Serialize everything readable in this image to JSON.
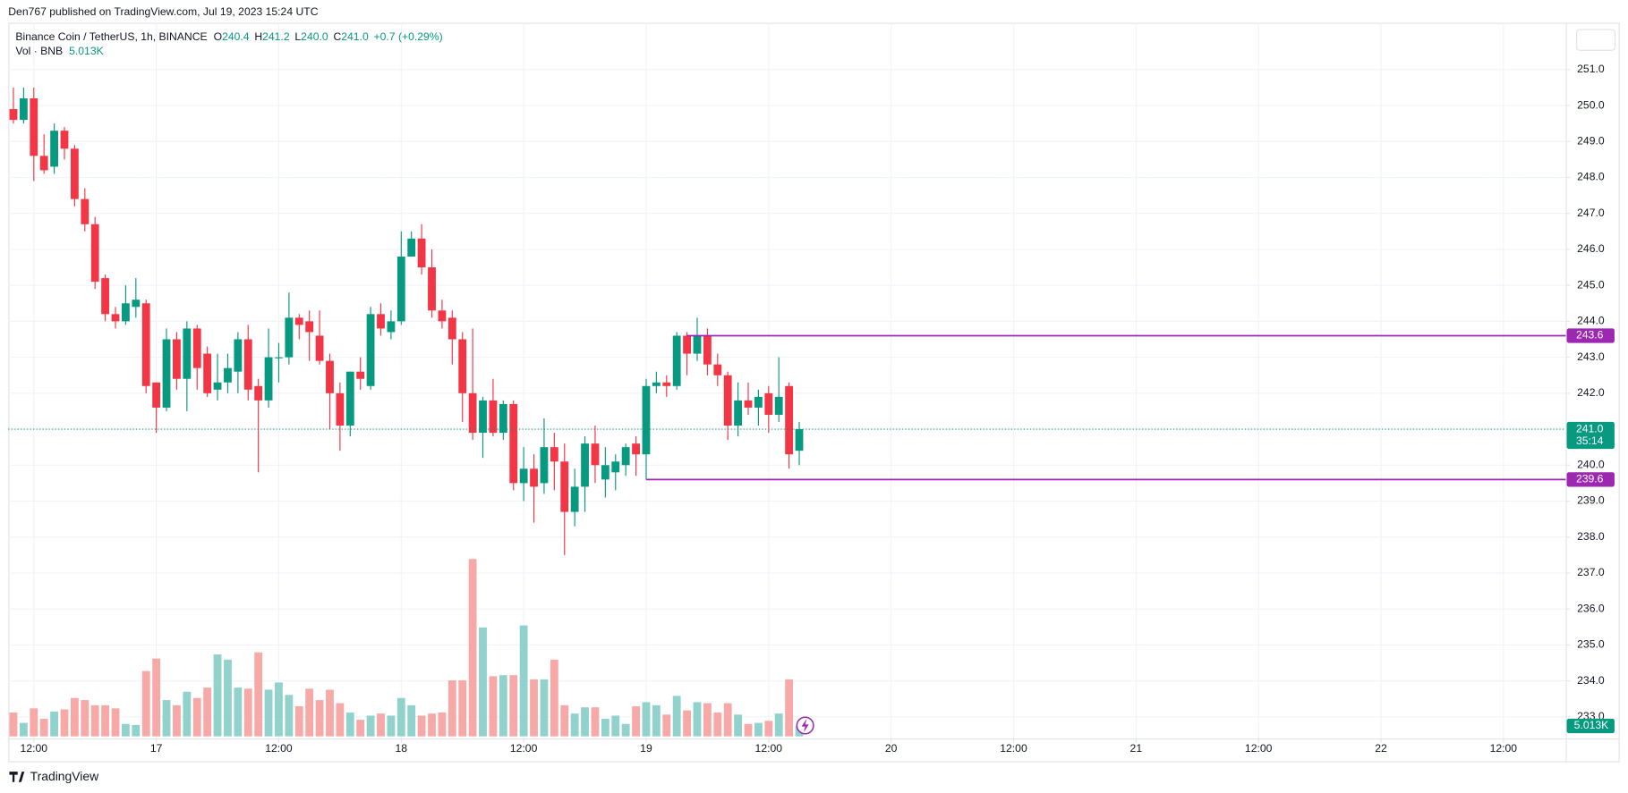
{
  "header": "Den767 published on TradingView.com, Jul 19, 2023 15:24 UTC",
  "legend": {
    "symbol": "Binance Coin / TetherUS, 1h, BINANCE",
    "items": [
      {
        "label": "O",
        "value": "240.4"
      },
      {
        "label": "H",
        "value": "241.2"
      },
      {
        "label": "L",
        "value": "240.0"
      },
      {
        "label": "C",
        "value": "241.0"
      }
    ],
    "change": "+0.7 (+0.29%)",
    "volume_label": "Vol · BNB",
    "volume_value": "5.013K"
  },
  "footer": "TradingView",
  "chart_data": {
    "type": "candlestick",
    "x": [
      10,
      11,
      12,
      13,
      14,
      15,
      16,
      17,
      18,
      19,
      20,
      21,
      22,
      23,
      24,
      25,
      26,
      27,
      28,
      29,
      30,
      31,
      32,
      33,
      34,
      35,
      36,
      37,
      38,
      39,
      40,
      41,
      42,
      43,
      44,
      45,
      46,
      47,
      48,
      49,
      50,
      51,
      52,
      53,
      54,
      55,
      56,
      57,
      58,
      59,
      60,
      61,
      62,
      63,
      64,
      65,
      66,
      67,
      68,
      69,
      70,
      71,
      72,
      73,
      74,
      75,
      76,
      77,
      78,
      79,
      80,
      81,
      82,
      83,
      84,
      85,
      86,
      87
    ],
    "open": [
      249.9,
      249.6,
      250.2,
      248.6,
      248.3,
      249.3,
      248.8,
      247.4,
      246.7,
      245.2,
      244.2,
      244.0,
      244.4,
      244.5,
      242.3,
      241.6,
      243.5,
      242.4,
      243.8,
      243.1,
      242.1,
      242.3,
      242.6,
      243.5,
      242.2,
      241.8,
      243.0,
      243.0,
      244.1,
      244.0,
      243.6,
      242.9,
      242.0,
      241.1,
      242.6,
      242.2,
      244.2,
      243.7,
      244.0,
      245.8,
      246.3,
      245.5,
      244.3,
      244.1,
      243.5,
      242.0,
      240.9,
      241.8,
      240.9,
      241.7,
      239.5,
      239.9,
      239.5,
      240.5,
      240.1,
      238.7,
      239.4,
      240.6,
      239.6,
      239.8,
      240.0,
      240.6,
      240.3,
      242.2,
      242.3,
      242.2,
      243.6,
      243.1,
      243.6,
      242.8,
      242.5,
      241.1,
      241.8,
      241.6,
      242.0,
      241.4,
      242.2,
      240.4
    ],
    "high": [
      250.5,
      250.5,
      250.5,
      249.2,
      249.5,
      249.4,
      248.9,
      247.7,
      246.9,
      245.3,
      244.4,
      245.0,
      245.2,
      244.6,
      242.3,
      243.8,
      243.7,
      244.0,
      243.9,
      243.3,
      243.1,
      243.1,
      243.7,
      243.9,
      242.4,
      243.8,
      243.4,
      244.8,
      244.2,
      244.3,
      244.3,
      243.1,
      242.3,
      242.6,
      243.0,
      244.4,
      244.5,
      244.3,
      246.5,
      246.5,
      246.7,
      246.0,
      244.6,
      244.3,
      243.7,
      243.8,
      241.9,
      242.4,
      241.8,
      241.8,
      240.5,
      240.3,
      241.3,
      240.9,
      240.6,
      239.9,
      240.8,
      241.1,
      240.5,
      240.3,
      240.6,
      240.8,
      242.4,
      242.6,
      242.5,
      243.7,
      243.7,
      244.1,
      243.8,
      243.1,
      242.6,
      242.3,
      242.3,
      242.1,
      242.2,
      243.0,
      242.3,
      241.2
    ],
    "low": [
      249.5,
      249.5,
      247.9,
      248.1,
      248.1,
      248.5,
      247.2,
      246.5,
      244.9,
      244.0,
      243.8,
      243.9,
      244.1,
      242.0,
      240.9,
      241.5,
      242.1,
      241.5,
      242.1,
      241.9,
      241.8,
      242.0,
      242.0,
      241.8,
      239.8,
      241.6,
      242.3,
      242.8,
      243.5,
      242.9,
      242.8,
      241.0,
      240.4,
      240.8,
      242.1,
      242.1,
      243.6,
      243.5,
      243.9,
      245.8,
      245.3,
      244.1,
      243.8,
      242.8,
      241.2,
      240.7,
      240.2,
      240.8,
      240.7,
      239.3,
      239.0,
      238.4,
      239.2,
      239.3,
      237.5,
      238.3,
      238.7,
      239.5,
      239.1,
      239.3,
      239.7,
      239.7,
      239.6,
      242.0,
      241.9,
      242.1,
      242.5,
      242.9,
      242.5,
      242.2,
      240.7,
      240.8,
      241.4,
      241.1,
      240.9,
      241.2,
      239.9,
      240.0
    ],
    "close": [
      249.6,
      250.2,
      248.6,
      248.2,
      249.3,
      248.8,
      247.4,
      246.7,
      245.1,
      244.2,
      244.0,
      244.5,
      244.6,
      242.2,
      241.6,
      243.5,
      242.4,
      243.8,
      242.7,
      242.0,
      242.3,
      242.7,
      243.5,
      242.1,
      241.8,
      243.0,
      243.0,
      244.1,
      243.9,
      243.7,
      242.9,
      242.0,
      241.1,
      242.6,
      242.4,
      244.2,
      243.8,
      244.0,
      245.8,
      246.3,
      245.5,
      244.3,
      244.0,
      243.5,
      242.0,
      240.9,
      241.8,
      240.9,
      241.7,
      239.5,
      239.9,
      239.4,
      240.5,
      240.1,
      238.7,
      239.4,
      240.6,
      240.0,
      240.0,
      240.1,
      240.5,
      240.3,
      242.2,
      242.3,
      242.2,
      243.6,
      243.1,
      243.6,
      242.8,
      242.5,
      241.1,
      241.8,
      241.6,
      241.9,
      241.4,
      241.9,
      240.3,
      241.0
    ],
    "volume": [
      11.5,
      6.5,
      13.5,
      8.5,
      12,
      13,
      18.5,
      17.5,
      15,
      15,
      13.5,
      6,
      5.5,
      31.5,
      37.5,
      17.5,
      15,
      21.5,
      18.5,
      23.5,
      39.5,
      37,
      23.5,
      23,
      40.5,
      22.5,
      26,
      20,
      14.5,
      23,
      17.5,
      22.5,
      16,
      11.5,
      8,
      10,
      11,
      10,
      18.5,
      15,
      10,
      11,
      11.5,
      27,
      27,
      85.5,
      52.5,
      29,
      29.5,
      29.5,
      53.5,
      27.5,
      27.5,
      37,
      15,
      11,
      14,
      14,
      8.5,
      10,
      6,
      14.5,
      16.5,
      15,
      10.5,
      19.5,
      12.5,
      16.5,
      16,
      11.5,
      16,
      10.5,
      6,
      6.5,
      7.5,
      11,
      27.5,
      5.013
    ],
    "volume_label": "5.013K",
    "volume_ylim": [
      0,
      100
    ],
    "up_color": "#089981",
    "down_color": "#f23645",
    "volume_up_color": "#92d2cc",
    "volume_down_color": "#f7a9a7",
    "xlim": [
      9.5,
      162.1
    ],
    "xticks": [
      {
        "value": 12,
        "label": "12:00"
      },
      {
        "value": 24,
        "label": "17"
      },
      {
        "value": 36,
        "label": "12:00"
      },
      {
        "value": 48,
        "label": "18"
      },
      {
        "value": 60,
        "label": "12:00"
      },
      {
        "value": 72,
        "label": "19"
      },
      {
        "value": 84,
        "label": "12:00"
      },
      {
        "value": 96,
        "label": "20"
      },
      {
        "value": 108,
        "label": "12:00"
      },
      {
        "value": 120,
        "label": "21"
      },
      {
        "value": 132,
        "label": "12:00"
      },
      {
        "value": 144,
        "label": "22"
      },
      {
        "value": 156,
        "label": "12:00"
      }
    ],
    "ylim": [
      232.4,
      252.3
    ],
    "yticks": [
      {
        "value": 233,
        "label": "233.0"
      },
      {
        "value": 234,
        "label": "234.0"
      },
      {
        "value": 235,
        "label": "235.0"
      },
      {
        "value": 236,
        "label": "236.0"
      },
      {
        "value": 237,
        "label": "237.0"
      },
      {
        "value": 238,
        "label": "238.0"
      },
      {
        "value": 239,
        "label": "239.0"
      },
      {
        "value": 240,
        "label": "240.0"
      },
      {
        "value": 241,
        "label": "241.0"
      },
      {
        "value": 242,
        "label": "242.0"
      },
      {
        "value": 243,
        "label": "243.0"
      },
      {
        "value": 244,
        "label": "244.0"
      },
      {
        "value": 245,
        "label": "245.0"
      },
      {
        "value": 246,
        "label": "246.0"
      },
      {
        "value": 247,
        "label": "247.0"
      },
      {
        "value": 248,
        "label": "248.0"
      },
      {
        "value": 249,
        "label": "249.0"
      },
      {
        "value": 250,
        "label": "250.0"
      },
      {
        "value": 251,
        "label": "251.0"
      }
    ],
    "grid": true,
    "levels": [
      {
        "value": 243.6,
        "label": "243.6",
        "x_start": 76,
        "color": "#9c27b0"
      },
      {
        "value": 239.6,
        "label": "239.6",
        "x_start": 72,
        "color": "#9c27b0"
      }
    ],
    "last_price": {
      "value": 241,
      "label": "241.0",
      "countdown": "35:14",
      "color": "#089981"
    }
  }
}
